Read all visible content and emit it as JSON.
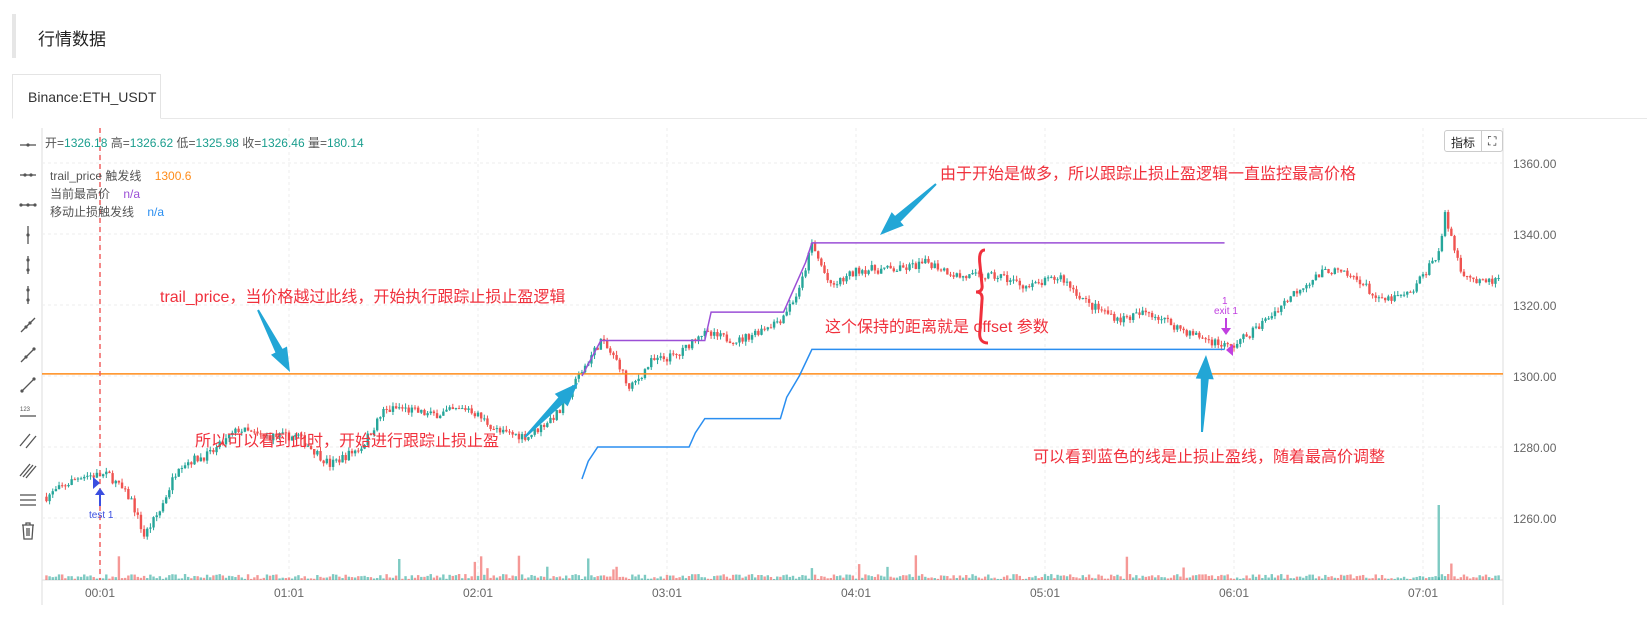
{
  "header": {
    "title": "行情数据"
  },
  "tabs": [
    {
      "label": "Binance:ETH_USDT",
      "active": true
    }
  ],
  "toolbar_right": {
    "indicators_label": "指标",
    "fullscreen_icon": "expand-icon"
  },
  "left_tools": [
    "horizontal-ray-icon",
    "horizontal-line-icon",
    "horizontal-segment-icon",
    "vertical-line-icon",
    "vertical-ray-icon",
    "vertical-segment-icon",
    "trend-line-icon",
    "ray-icon",
    "segment-icon",
    "price-label-icon",
    "parallel-channel-icon",
    "pitchfork-icon",
    "settings-lines-icon",
    "trash-icon"
  ],
  "ohlc": {
    "open_label": "开=",
    "open": "1326.18",
    "high_label": "高=",
    "high": "1326.62",
    "low_label": "低=",
    "low": "1325.98",
    "close_label": "收=",
    "close": "1326.46",
    "vol_label": "量=",
    "vol": "180.14"
  },
  "legend": [
    {
      "name": "trail_price 触发线",
      "value": "1300.6",
      "color": "#ff8c1a"
    },
    {
      "name": "当前最高价",
      "value": "n/a",
      "color": "#9b4fd6"
    },
    {
      "name": "移动止损触发线",
      "value": "n/a",
      "color": "#2a8ef0"
    }
  ],
  "annotations": [
    "由于开始是做多，所以跟踪止损止盈逻辑一直监控最高价格",
    "trail_price，当价格越过此线，开始执行跟踪止损止盈逻辑",
    "这个保持的距离就是 offset 参数",
    "所以可以看到此时，开始进行跟踪止损止盈",
    "可以看到蓝色的线是止损止盈线，随着最高价调整"
  ],
  "markers": [
    {
      "label": "test 1",
      "color": "#3a4ee0"
    },
    {
      "count": "1",
      "label": "exit 1",
      "color": "#c040e0"
    }
  ],
  "chart_data": {
    "type": "candlestick",
    "symbol": "Binance:ETH_USDT",
    "x_ticks": [
      "00:01",
      "01:01",
      "02:01",
      "03:01",
      "04:01",
      "05:01",
      "06:01",
      "07:01"
    ],
    "y_ticks": [
      "1260.00",
      "1280.00",
      "1300.00",
      "1320.00",
      "1340.00",
      "1360.00"
    ],
    "ylim": [
      1250,
      1370
    ],
    "grid": true,
    "colors": {
      "up": "#26a69a",
      "down": "#ef5350"
    },
    "close_path": [
      [
        "23:44",
        1266
      ],
      [
        "23:55",
        1272
      ],
      [
        "00:04",
        1272
      ],
      [
        "00:11",
        1265
      ],
      [
        "00:15",
        1255
      ],
      [
        "00:20",
        1262
      ],
      [
        "00:26",
        1275
      ],
      [
        "00:36",
        1278
      ],
      [
        "00:45",
        1285
      ],
      [
        "00:52",
        1283
      ],
      [
        "01:04",
        1283
      ],
      [
        "01:14",
        1275
      ],
      [
        "01:24",
        1280
      ],
      [
        "01:31",
        1290
      ],
      [
        "01:36",
        1291
      ],
      [
        "01:46",
        1289
      ],
      [
        "01:58",
        1291
      ],
      [
        "02:08",
        1284
      ],
      [
        "02:17",
        1283
      ],
      [
        "02:27",
        1290
      ],
      [
        "02:33",
        1300
      ],
      [
        "02:40",
        1310
      ],
      [
        "02:46",
        1303
      ],
      [
        "02:49",
        1296
      ],
      [
        "02:56",
        1304
      ],
      [
        "03:05",
        1306
      ],
      [
        "03:11",
        1312
      ],
      [
        "03:24",
        1310
      ],
      [
        "03:37",
        1316
      ],
      [
        "03:43",
        1324
      ],
      [
        "03:47",
        1337
      ],
      [
        "03:53",
        1325
      ],
      [
        "04:02",
        1330
      ],
      [
        "04:15",
        1330
      ],
      [
        "04:24",
        1332
      ],
      [
        "04:34",
        1328
      ],
      [
        "04:47",
        1328
      ],
      [
        "04:56",
        1325
      ],
      [
        "05:06",
        1328
      ],
      [
        "05:15",
        1320
      ],
      [
        "05:25",
        1316
      ],
      [
        "05:34",
        1318
      ],
      [
        "05:47",
        1312
      ],
      [
        "06:00",
        1308
      ],
      [
        "06:09",
        1314
      ],
      [
        "06:22",
        1325
      ],
      [
        "06:31",
        1330
      ],
      [
        "06:41",
        1327
      ],
      [
        "06:47",
        1321
      ],
      [
        "06:57",
        1323
      ],
      [
        "07:06",
        1335
      ],
      [
        "07:08",
        1345
      ],
      [
        "07:13",
        1330
      ],
      [
        "07:19",
        1326
      ],
      [
        "07:25",
        1327
      ]
    ],
    "series": [
      {
        "name": "trail_price 触发线",
        "color": "#ff8c1a",
        "value": 1300.6
      },
      {
        "name": "当前最高价",
        "color": "#9b4fd6",
        "points": [
          [
            "02:34",
            1300
          ],
          [
            "02:37",
            1305
          ],
          [
            "02:40",
            1310
          ],
          [
            "03:13",
            1310
          ],
          [
            "03:15",
            1318
          ],
          [
            "03:38",
            1318
          ],
          [
            "03:41",
            1324
          ],
          [
            "03:45",
            1332
          ],
          [
            "03:47",
            1337.5
          ],
          [
            "05:58",
            1337.5
          ]
        ]
      },
      {
        "name": "移动止损触发线",
        "color": "#2a8ef0",
        "points": [
          [
            "02:34",
            1271
          ],
          [
            "02:36",
            1276
          ],
          [
            "02:39",
            1280
          ],
          [
            "03:08",
            1280
          ],
          [
            "03:10",
            1284
          ],
          [
            "03:13",
            1288
          ],
          [
            "03:37",
            1288
          ],
          [
            "03:39",
            1294
          ],
          [
            "03:43",
            1300
          ],
          [
            "03:47",
            1307.5
          ],
          [
            "05:58",
            1307.5
          ]
        ]
      }
    ]
  }
}
